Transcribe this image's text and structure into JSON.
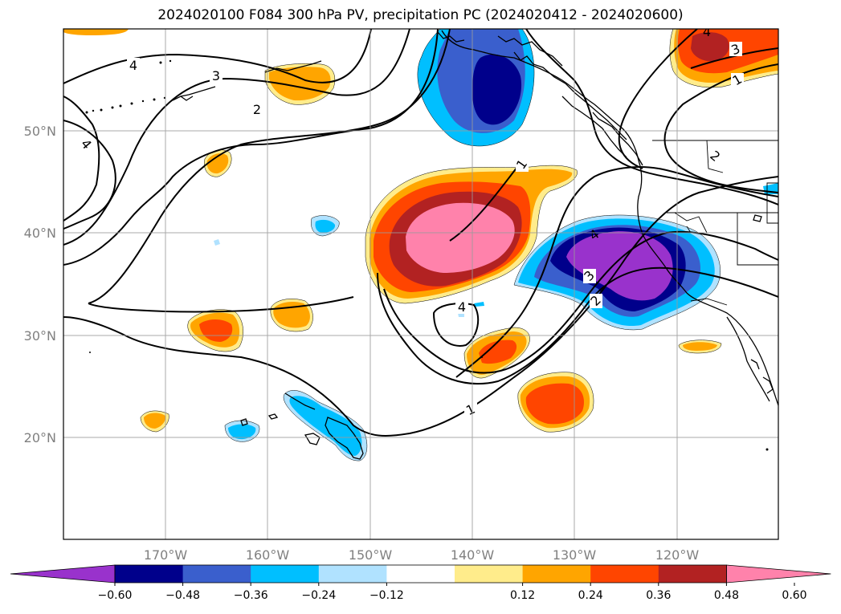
{
  "title": "2024020100 F084 300 hPa PV, precipitation PC (2024020412 - 2024020600)",
  "map": {
    "lat_labels": [
      "50°N",
      "40°N",
      "30°N",
      "20°N"
    ],
    "lon_labels": [
      "170°W",
      "160°W",
      "150°W",
      "140°W",
      "130°W",
      "120°W"
    ],
    "tick_label_color": "#808080",
    "grid": true,
    "contour_labels": [
      "4",
      "3",
      "2",
      "1",
      "1",
      "2",
      "3",
      "4",
      "4",
      "3",
      "2",
      "1",
      "4"
    ]
  },
  "colorbar": {
    "tick_labels": [
      "−0.60",
      "−0.48",
      "−0.36",
      "−0.24",
      "−0.12",
      "0.12",
      "0.24",
      "0.36",
      "0.48",
      "0.60"
    ],
    "colors": [
      "#9932cc",
      "#00008b",
      "#3a5fcd",
      "#00bfff",
      "#b0e2ff",
      "#ffffff",
      "#ffec8b",
      "#ffa500",
      "#ff4500",
      "#b22222",
      "#ff82ab"
    ]
  }
}
